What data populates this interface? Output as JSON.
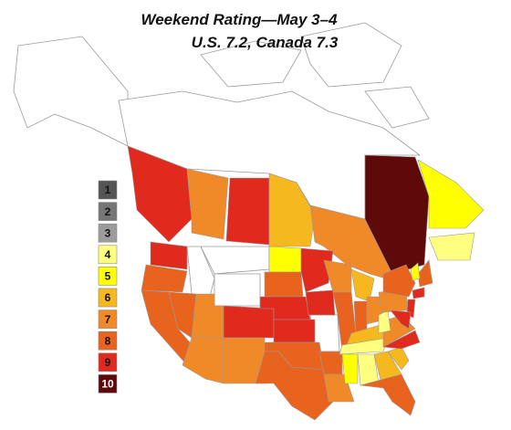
{
  "title": "Weekend Rating—May 3–4",
  "subtitle": "U.S. 7.2, Canada 7.3",
  "legend": [
    {
      "value": 1,
      "color": "#555555"
    },
    {
      "value": 2,
      "color": "#767676"
    },
    {
      "value": 3,
      "color": "#9c9c9c"
    },
    {
      "value": 4,
      "color": "#ffff80"
    },
    {
      "value": 5,
      "color": "#ffff00"
    },
    {
      "value": 6,
      "color": "#f5b81e"
    },
    {
      "value": 7,
      "color": "#f08a28"
    },
    {
      "value": 8,
      "color": "#e8641e"
    },
    {
      "value": 9,
      "color": "#e02a1e"
    },
    {
      "value": 10,
      "color": "#5e0a0a"
    }
  ],
  "regions": [
    9,
    7,
    9,
    6,
    7,
    10,
    5,
    4,
    9,
    8,
    8,
    8,
    7,
    7,
    9,
    7,
    5,
    8,
    9,
    9,
    8,
    8,
    9,
    9,
    8,
    7,
    7,
    8,
    6,
    8,
    7,
    6,
    4,
    5,
    4,
    6,
    8,
    6,
    9,
    7,
    4,
    7,
    8,
    9,
    9,
    8,
    5,
    9
  ]
}
